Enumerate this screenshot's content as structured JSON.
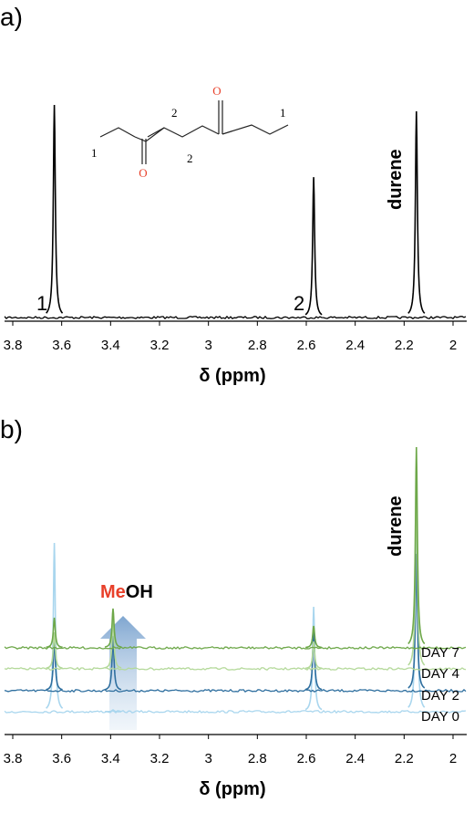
{
  "chart_data": [
    {
      "type": "spectrum",
      "panel": "a)",
      "xlabel": "δ (ppm)",
      "xlim": [
        3.8,
        2
      ],
      "xticks": [
        3.8,
        3.6,
        3.4,
        3.2,
        3,
        2.8,
        2.6,
        2.4,
        2.2,
        2
      ],
      "x": [
        3.63,
        2.57,
        2.15
      ],
      "series": [
        {
          "color": "#000000",
          "values": [
            100,
            66,
            97
          ]
        }
      ],
      "peak_labels": [
        "1",
        "2",
        "durene"
      ],
      "structure": {
        "atom": "O",
        "numbers": [
          "1",
          "2",
          "2",
          "1"
        ]
      }
    },
    {
      "type": "spectrum",
      "panel": "b)",
      "xlabel": "δ (ppm)",
      "xlim": [
        3.8,
        2
      ],
      "xticks": [
        3.8,
        3.6,
        3.4,
        3.2,
        3,
        2.8,
        2.6,
        2.4,
        2.2,
        2
      ],
      "x": [
        3.63,
        3.39,
        2.57,
        2.15
      ],
      "series": [
        {
          "name": "DAY 0",
          "color": "#a9d6ee",
          "values": [
            185,
            2,
            115,
            230
          ]
        },
        {
          "name": "DAY 2",
          "color": "#2f6f9f",
          "values": [
            57,
            60,
            65,
            150
          ]
        },
        {
          "name": "DAY 4",
          "color": "#b4d99a",
          "values": [
            40,
            55,
            30,
            200
          ]
        },
        {
          "name": "DAY 7",
          "color": "#6ea84a",
          "values": [
            33,
            43,
            24,
            220
          ]
        }
      ],
      "peak_labels": [
        "durene"
      ],
      "annotation": [
        "Me",
        "OH"
      ]
    }
  ]
}
